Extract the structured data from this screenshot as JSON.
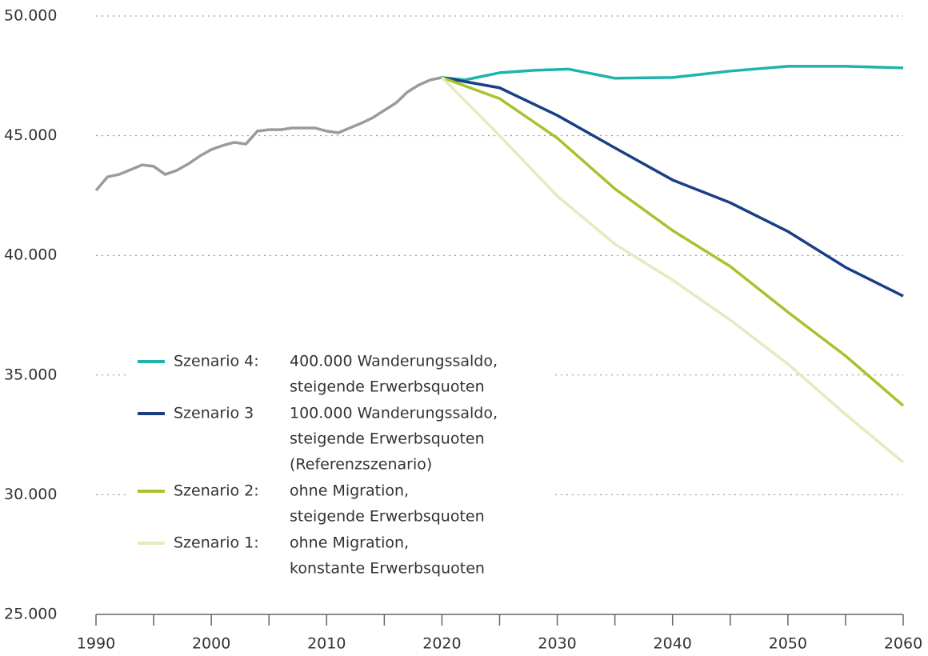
{
  "chart_data": {
    "type": "line",
    "xlim": [
      1990,
      2060
    ],
    "xticks": [
      1990,
      2000,
      2010,
      2020,
      2030,
      2040,
      2050,
      2060
    ],
    "xminorticks": [
      1995,
      2005,
      2015,
      2025,
      2035,
      2045,
      2055
    ],
    "ylim": [
      25000,
      50000
    ],
    "yticks": [
      {
        "value": 25000,
        "label": "25.000"
      },
      {
        "value": 30000,
        "label": "30.000"
      },
      {
        "value": 35000,
        "label": "35.000"
      },
      {
        "value": 40000,
        "label": "40.000"
      },
      {
        "value": 45000,
        "label": "45.000"
      },
      {
        "value": 50000,
        "label": "50.000"
      }
    ],
    "grid": true,
    "series": [
      {
        "color": "#9b9b9b",
        "x": [
          1990,
          1991,
          1992,
          1993,
          1994,
          1995,
          1996,
          1997,
          1998,
          1999,
          2000,
          2001,
          2002,
          2003,
          2004,
          2005,
          2006,
          2007,
          2008,
          2009,
          2010,
          2011,
          2012,
          2013,
          2014,
          2015,
          2016,
          2017,
          2018,
          2019,
          2020
        ],
        "values": [
          42710,
          43280,
          43380,
          43580,
          43780,
          43720,
          43380,
          43550,
          43820,
          44150,
          44420,
          44590,
          44720,
          44650,
          45190,
          45250,
          45250,
          45320,
          45320,
          45320,
          45190,
          45120,
          45320,
          45520,
          45750,
          46060,
          46360,
          46820,
          47120,
          47330,
          47430
        ]
      },
      {
        "name": "Szenario 4:",
        "description": [
          "400.000 Wanderungssaldo,",
          "steigende Erwerbsquoten"
        ],
        "color": "#1fb3ae",
        "x": [
          2020,
          2022,
          2025,
          2028,
          2031,
          2035,
          2040,
          2045,
          2050,
          2055,
          2060
        ],
        "values": [
          47430,
          47330,
          47630,
          47730,
          47780,
          47400,
          47430,
          47700,
          47900,
          47900,
          47830
        ]
      },
      {
        "name": "Szenario 3",
        "description": [
          "100.000 Wanderungssaldo,",
          "steigende Erwerbsquoten",
          "(Referenzszenario)"
        ],
        "color": "#1a3f84",
        "x": [
          2020,
          2025,
          2030,
          2035,
          2040,
          2045,
          2050,
          2055,
          2060
        ],
        "values": [
          47430,
          47000,
          45850,
          44490,
          43150,
          42200,
          41000,
          39500,
          38300
        ]
      },
      {
        "name": "Szenario 2:",
        "description": [
          "ohne Migration,",
          "steigende Erwerbsquoten"
        ],
        "color": "#a5c42c",
        "x": [
          2020,
          2025,
          2030,
          2035,
          2040,
          2045,
          2050,
          2055,
          2060
        ],
        "values": [
          47430,
          46550,
          44900,
          42780,
          41040,
          39540,
          37630,
          35800,
          33720
        ]
      },
      {
        "name": "Szenario 1:",
        "description": [
          "ohne Migration,",
          "konstante Erwerbsquoten"
        ],
        "color": "#e3ebbf",
        "x": [
          2020,
          2025,
          2030,
          2035,
          2040,
          2045,
          2050,
          2055,
          2060
        ],
        "values": [
          47430,
          45000,
          42480,
          40470,
          38970,
          37300,
          35460,
          33360,
          31350
        ]
      }
    ]
  }
}
